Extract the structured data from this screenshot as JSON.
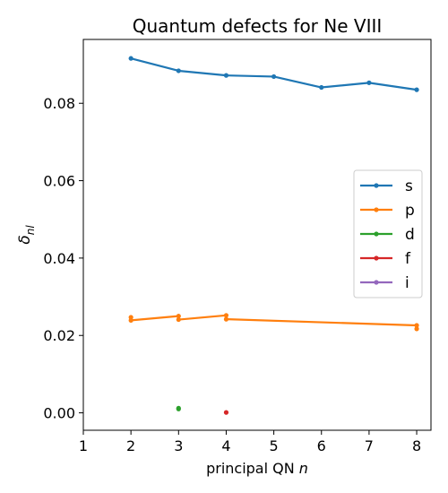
{
  "chart_data": {
    "type": "line",
    "title": "Quantum defects for Ne VIII",
    "xlabel_text": "principal QN ",
    "xlabel_var": "n",
    "ylabel_main": "δ",
    "ylabel_sub": "nl",
    "xlim": [
      1,
      8.3
    ],
    "ylim": [
      -0.0045,
      0.0965
    ],
    "xticks": [
      1,
      2,
      3,
      4,
      5,
      6,
      7,
      8
    ],
    "yticks": [
      0.0,
      0.02,
      0.04,
      0.06,
      0.08
    ],
    "ytick_labels": [
      "0.00",
      "0.02",
      "0.04",
      "0.06",
      "0.08"
    ],
    "legend_location": "center-right",
    "series": [
      {
        "name": "s",
        "color": "#1f77b4",
        "x": [
          2,
          3,
          4,
          5,
          6,
          7,
          8
        ],
        "y": [
          0.0916,
          0.0884,
          0.0872,
          0.0869,
          0.0841,
          0.0853,
          0.0835
        ]
      },
      {
        "name": "p",
        "color": "#ff7f0e",
        "x": [
          2,
          2,
          3,
          3,
          4,
          4,
          8,
          8
        ],
        "y": [
          0.0247,
          0.0239,
          0.025,
          0.0241,
          0.0252,
          0.0242,
          0.0226,
          0.0217
        ]
      },
      {
        "name": "d",
        "color": "#2ca02c",
        "x": [
          3,
          3
        ],
        "y": [
          0.0012,
          0.001
        ]
      },
      {
        "name": "f",
        "color": "#d62728",
        "x": [
          4
        ],
        "y": [
          0.0001
        ]
      },
      {
        "name": "i",
        "color": "#9467bd",
        "x": [],
        "y": []
      }
    ]
  }
}
